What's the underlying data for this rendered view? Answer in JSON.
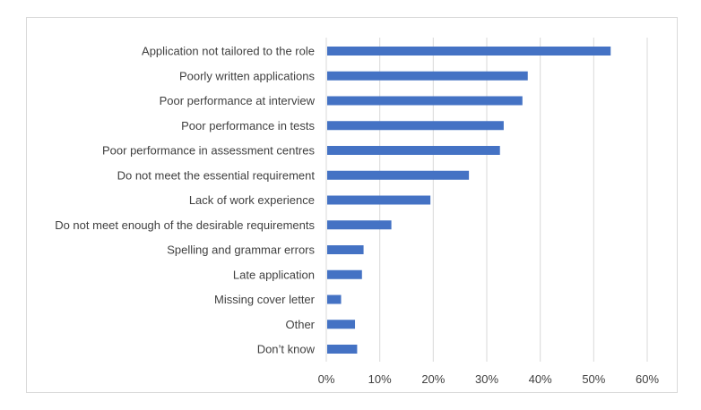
{
  "chart_data": {
    "type": "bar",
    "orientation": "horizontal",
    "title": "",
    "xlabel": "",
    "ylabel": "",
    "categories": [
      "Application not tailored to the role",
      "Poorly written applications",
      "Poor performance at interview",
      "Poor performance in tests",
      "Poor performance in assessment centres",
      "Do not meet the essential requirement",
      "Lack of work experience",
      "Do not meet enough of the desirable requirements",
      "Spelling and grammar errors",
      "Late application",
      "Missing cover letter",
      "Other",
      "Don’t know"
    ],
    "values": [
      53,
      37.5,
      36.5,
      33,
      32.3,
      26.5,
      19.3,
      12,
      6.8,
      6.5,
      2.6,
      5.2,
      5.6
    ],
    "xlim": [
      0,
      60
    ],
    "xticks": [
      "0%",
      "10%",
      "20%",
      "30%",
      "40%",
      "50%",
      "60%"
    ],
    "grid": "vertical",
    "legend": "none",
    "colors": {
      "bar": "#4472c4",
      "grid": "#d9d9d9",
      "text": "#404040"
    }
  }
}
